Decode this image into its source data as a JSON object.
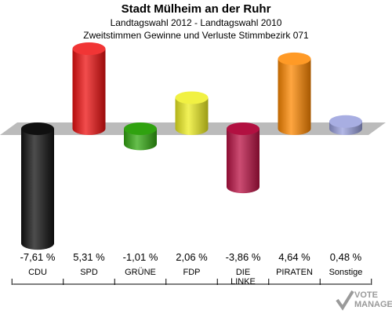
{
  "header": {
    "title": "Stadt Mülheim an der Ruhr",
    "subtitle": "Landtagswahl 2012 - Landtagswahl 2010",
    "subtitle2": "Zweitstimmen Gewinne und Verluste Stimmbezirk 071"
  },
  "chart_data": {
    "type": "bar",
    "title": "Stadt Mülheim an der Ruhr",
    "subtitle": "Landtagswahl 2012 - Landtagswahl 2010 / Zweitstimmen Gewinne und Verluste Stimmbezirk 071",
    "categories": [
      "CDU",
      "SPD",
      "GRÜNE",
      "FDP",
      "DIE LINKE",
      "PIRATEN",
      "Sonstige"
    ],
    "values": [
      -7.61,
      5.31,
      -1.01,
      2.06,
      -3.86,
      4.64,
      0.48
    ],
    "value_labels": [
      "-7,61 %",
      "5,31 %",
      "-1,01 %",
      "2,06 %",
      "-3,86 %",
      "4,64 %",
      "0,48 %"
    ],
    "colors": [
      "#111111",
      "#ee1111",
      "#33aa11",
      "#eeee22",
      "#bb1144",
      "#ff8800",
      "#99a0dd"
    ],
    "ylim": [
      -7.61,
      5.31
    ],
    "grid": false,
    "legend": "none"
  },
  "watermark": {
    "line1": "VOTE",
    "line2": "MANAGER"
  }
}
